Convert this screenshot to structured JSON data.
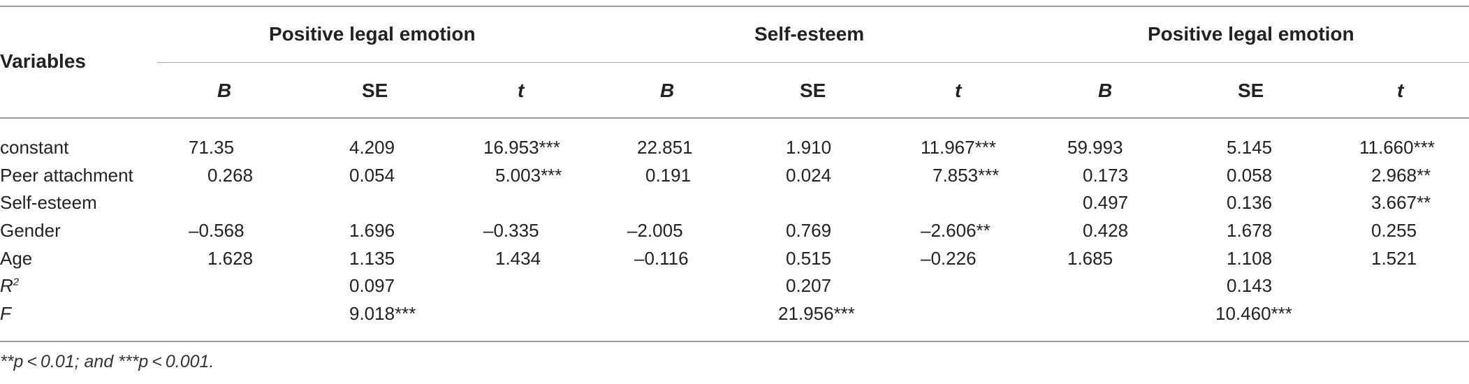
{
  "table": {
    "header": {
      "variables": "Variables",
      "groups": [
        "Positive legal emotion",
        "Self-esteem",
        "Positive legal emotion"
      ],
      "subheads": [
        "B",
        "SE",
        "t",
        "B",
        "SE",
        "t",
        "B",
        "SE",
        "t"
      ]
    },
    "rows": [
      {
        "label": "constant",
        "cells": [
          "71.35",
          "4.209",
          "16.953***",
          "22.851",
          "1.910",
          "11.967***",
          "59.993",
          "5.145",
          "11.660***"
        ]
      },
      {
        "label": "Peer attachment",
        "cells": [
          "0.268",
          "0.054",
          "5.003***",
          "0.191",
          "0.024",
          "7.853***",
          "0.173",
          "0.058",
          "2.968**"
        ]
      },
      {
        "label": "Self-esteem",
        "cells": [
          "",
          "",
          "",
          "",
          "",
          "",
          "0.497",
          "0.136",
          "3.667**"
        ]
      },
      {
        "label": "Gender",
        "cells": [
          "–0.568",
          "1.696",
          "–0.335",
          "–2.005",
          "0.769",
          "–2.606**",
          "0.428",
          "1.678",
          "0.255"
        ]
      },
      {
        "label": "Age",
        "cells": [
          "1.628",
          "1.135",
          "1.434",
          "–0.116",
          "0.515",
          "–0.226",
          "1.685",
          "1.108",
          "1.521"
        ]
      }
    ],
    "r2": {
      "label": "R",
      "sup": "2",
      "values": [
        "0.097",
        "0.207",
        "0.143"
      ]
    },
    "f": {
      "label": "F",
      "values": [
        "9.018***",
        "21.956***",
        "10.460***"
      ]
    },
    "footnote": "**p < 0.01; and ***p < 0.001."
  }
}
